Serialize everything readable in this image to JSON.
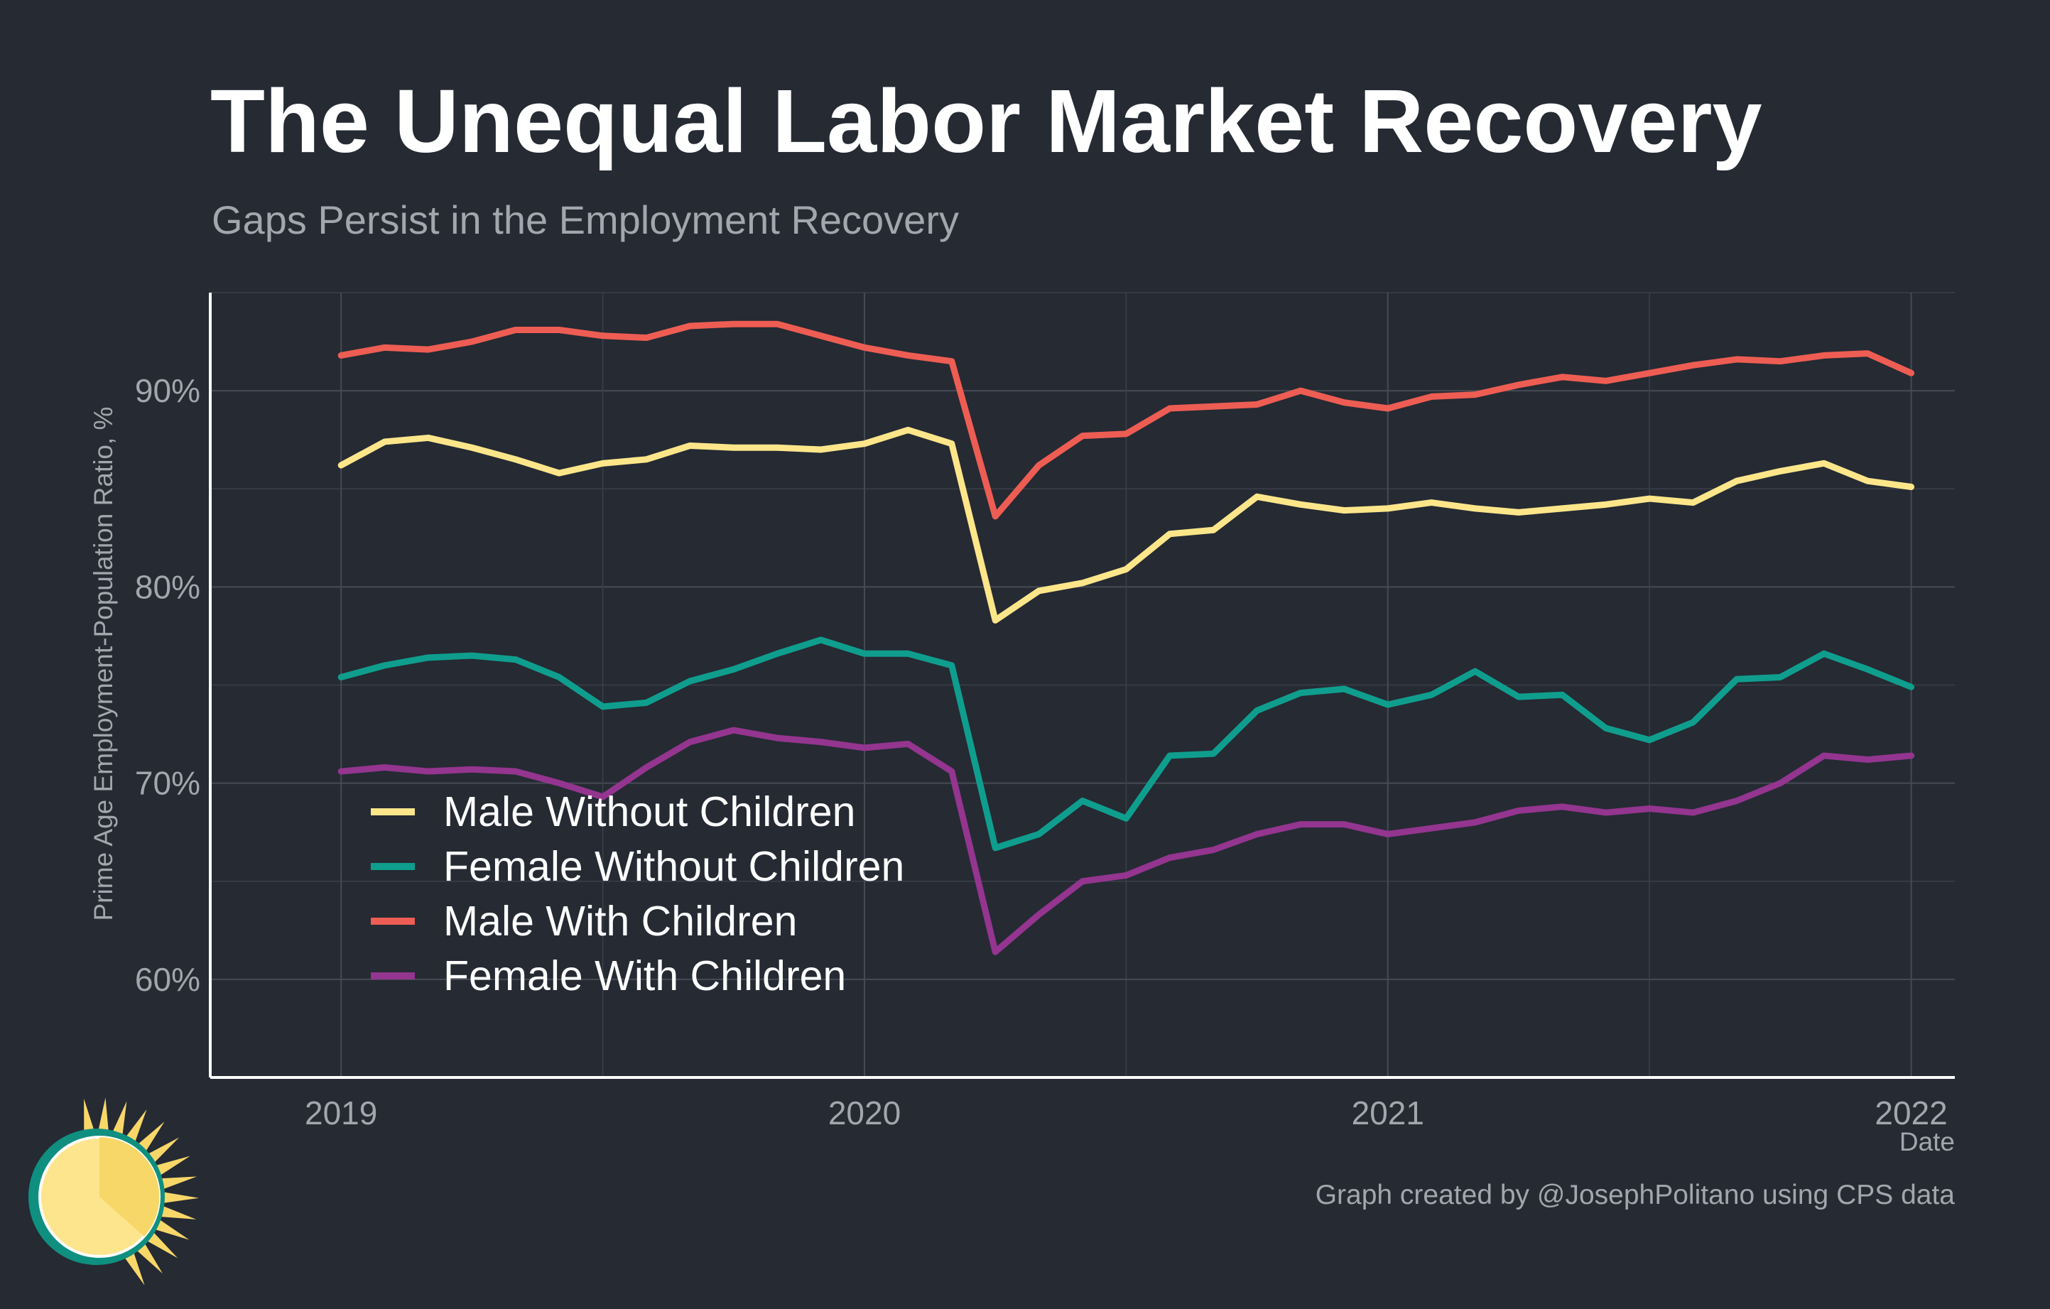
{
  "title": "The Unequal Labor Market Recovery",
  "subtitle": "Gaps Persist in the Employment Recovery",
  "caption": "Graph created by @JosephPolitano using CPS data",
  "logo": {
    "icon": "sun-icon",
    "colors": [
      "#f7d768",
      "#fde58e",
      "#0f8f7f"
    ]
  },
  "chart_data": {
    "type": "line",
    "title": "The Unequal Labor Market Recovery",
    "subtitle": "Gaps Persist in the Employment Recovery",
    "xlabel": "Date",
    "ylabel": "Prime Age Employment-Population Ratio, %",
    "x_ticks": [
      "2019",
      "2020",
      "2021",
      "2022"
    ],
    "y_ticks": [
      "60%",
      "70%",
      "80%",
      "90%"
    ],
    "y_tick_values": [
      60,
      70,
      80,
      90
    ],
    "xlim": [
      "2018-10",
      "2022-02"
    ],
    "ylim": [
      55,
      95
    ],
    "grid": true,
    "legend_position": "bottom-left inside",
    "x": [
      "2019-01",
      "2019-02",
      "2019-03",
      "2019-04",
      "2019-05",
      "2019-06",
      "2019-07",
      "2019-08",
      "2019-09",
      "2019-10",
      "2019-11",
      "2019-12",
      "2020-01",
      "2020-02",
      "2020-03",
      "2020-04",
      "2020-05",
      "2020-06",
      "2020-07",
      "2020-08",
      "2020-09",
      "2020-10",
      "2020-11",
      "2020-12",
      "2021-01",
      "2021-02",
      "2021-03",
      "2021-04",
      "2021-05",
      "2021-06",
      "2021-07",
      "2021-08",
      "2021-09",
      "2021-10",
      "2021-11",
      "2021-12",
      "2022-01"
    ],
    "series": [
      {
        "name": "Male Without Children",
        "color": "#fde68a",
        "values": [
          86.2,
          87.4,
          87.6,
          87.1,
          86.5,
          85.8,
          86.3,
          86.5,
          87.2,
          87.1,
          87.1,
          87.0,
          87.3,
          88.0,
          87.3,
          78.3,
          79.8,
          80.2,
          80.9,
          82.7,
          82.9,
          84.6,
          84.2,
          83.9,
          84.0,
          84.3,
          84.0,
          83.8,
          84.0,
          84.2,
          84.5,
          84.3,
          85.4,
          85.9,
          86.3,
          85.4,
          85.1
        ]
      },
      {
        "name": "Female Without Children",
        "color": "#0f9e8e",
        "values": [
          75.4,
          76.0,
          76.4,
          76.5,
          76.3,
          75.4,
          73.9,
          74.1,
          75.2,
          75.8,
          76.6,
          77.3,
          76.6,
          76.6,
          76.0,
          66.7,
          67.4,
          69.1,
          68.2,
          71.4,
          71.5,
          73.7,
          74.6,
          74.8,
          74.0,
          74.5,
          75.7,
          74.4,
          74.5,
          72.8,
          72.2,
          73.1,
          75.3,
          75.4,
          76.6,
          75.8,
          74.9
        ]
      },
      {
        "name": "Male With Children",
        "color": "#ee5d53",
        "values": [
          91.8,
          92.2,
          92.1,
          92.5,
          93.1,
          93.1,
          92.8,
          92.7,
          93.3,
          93.4,
          93.4,
          92.8,
          92.2,
          91.8,
          91.5,
          83.6,
          86.2,
          87.7,
          87.8,
          89.1,
          89.2,
          89.3,
          90.0,
          89.4,
          89.1,
          89.7,
          89.8,
          90.3,
          90.7,
          90.5,
          90.9,
          91.3,
          91.6,
          91.5,
          91.8,
          91.9,
          90.9
        ]
      },
      {
        "name": "Female With Children",
        "color": "#94358f",
        "values": [
          70.6,
          70.8,
          70.6,
          70.7,
          70.6,
          70.0,
          69.3,
          70.8,
          72.1,
          72.7,
          72.3,
          72.1,
          71.8,
          72.0,
          70.6,
          61.4,
          63.3,
          65.0,
          65.3,
          66.2,
          66.6,
          67.4,
          67.9,
          67.9,
          67.4,
          67.7,
          68.0,
          68.6,
          68.8,
          68.5,
          68.7,
          68.5,
          69.1,
          70.0,
          71.4,
          71.2,
          71.4
        ]
      }
    ]
  }
}
